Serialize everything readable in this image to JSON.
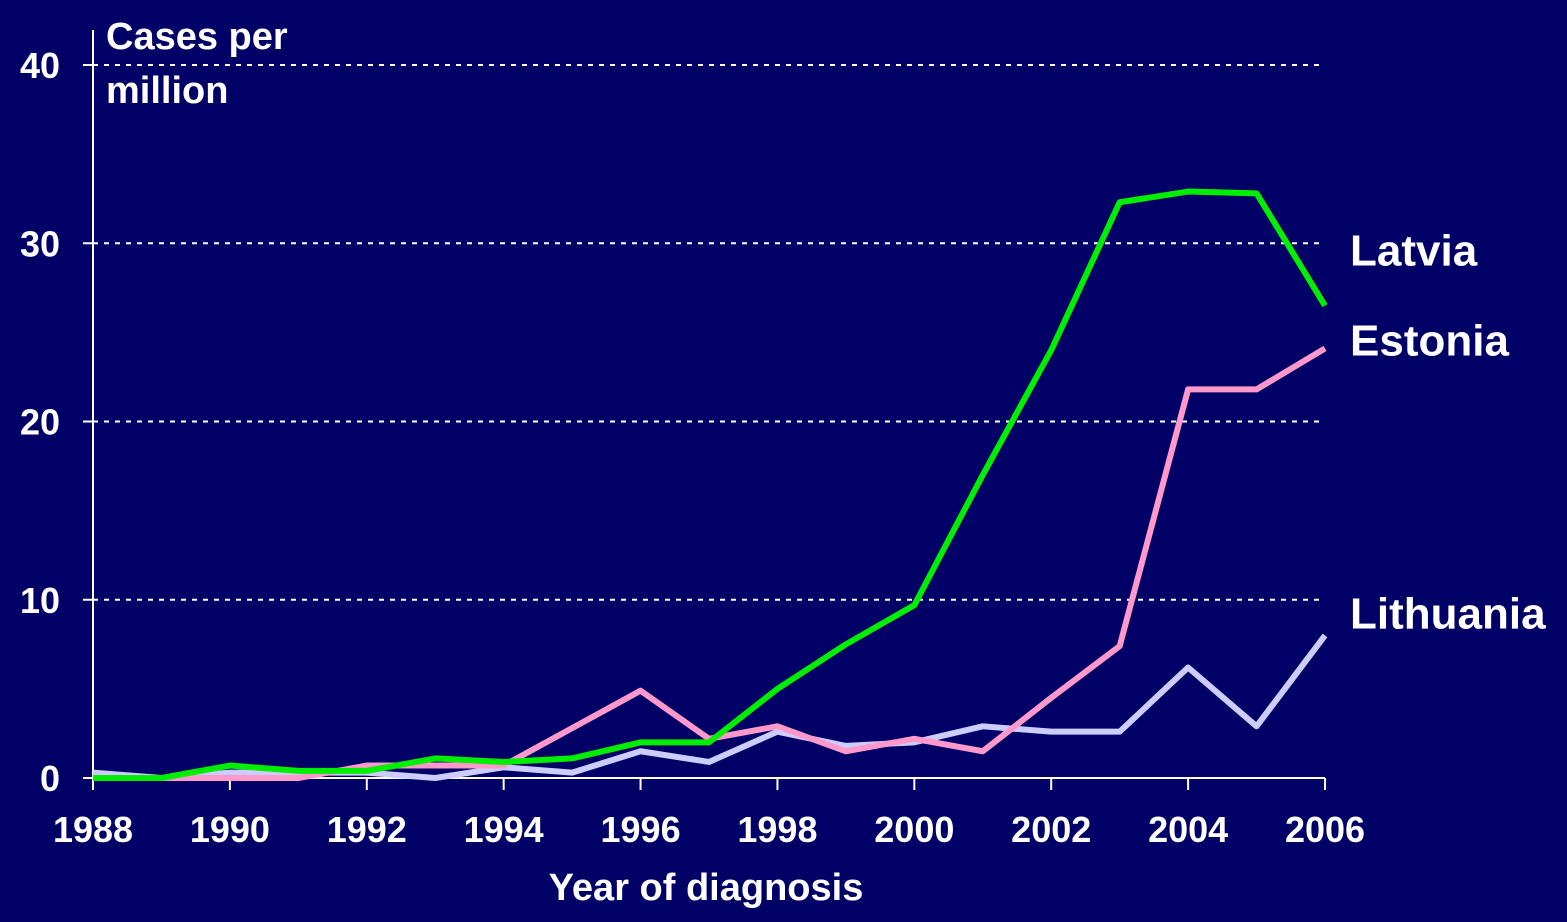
{
  "chart_data": {
    "type": "line",
    "y_label": "Cases per million",
    "x_label": "Year of diagnosis",
    "x": [
      1988,
      1989,
      1990,
      1991,
      1992,
      1993,
      1994,
      1995,
      1996,
      1997,
      1998,
      1999,
      2000,
      2001,
      2002,
      2003,
      2004,
      2005,
      2006
    ],
    "series": [
      {
        "name": "Latvia",
        "color": "#00ee00",
        "values": [
          0,
          0,
          0.7,
          0.4,
          0.4,
          1.1,
          0.9,
          1.1,
          2.0,
          2.0,
          5.0,
          7.5,
          9.7,
          17,
          24,
          32.3,
          32.9,
          32.8,
          26.5
        ]
      },
      {
        "name": "Estonia",
        "color": "#ff99cc",
        "values": [
          0,
          0,
          0,
          0,
          0.7,
          0.7,
          0.7,
          2.8,
          4.9,
          2.2,
          2.9,
          1.5,
          2.2,
          1.5,
          4.5,
          7.4,
          21.8,
          21.8,
          24.1
        ]
      },
      {
        "name": "Lithuania",
        "color": "#ccccff",
        "values": [
          0.3,
          0,
          0.3,
          0.3,
          0.3,
          0,
          0.6,
          0.3,
          1.5,
          0.9,
          2.6,
          1.8,
          2.0,
          2.9,
          2.6,
          2.6,
          6.2,
          2.9,
          8.0
        ]
      }
    ],
    "xlim": [
      1988,
      2006
    ],
    "xticks": [
      1988,
      1990,
      1992,
      1994,
      1996,
      1998,
      2000,
      2002,
      2004,
      2006
    ],
    "ylim": [
      0,
      40
    ],
    "yticks": [
      0,
      10,
      20,
      30,
      40
    ],
    "grid": true
  }
}
